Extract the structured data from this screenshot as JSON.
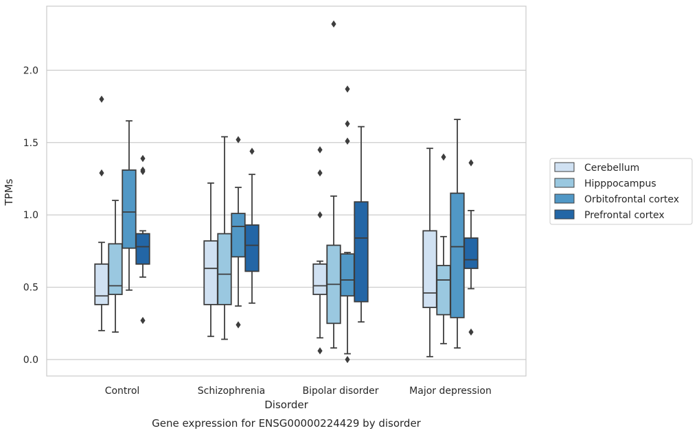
{
  "chart_data": {
    "type": "box",
    "xlabel": "Disorder",
    "ylabel": "TPMs",
    "caption": "Gene expression for ENSG00000224429 by disorder",
    "categories": [
      "Control",
      "Schizophrenia",
      "Bipolar disorder",
      "Major depression"
    ],
    "yticks": [
      "0.0",
      "0.5",
      "1.0",
      "1.5",
      "2.0"
    ],
    "ylim": [
      -0.11,
      2.45
    ],
    "grid": true,
    "legend_position": "right",
    "series": [
      {
        "name": "Cerebellum",
        "color": "#d0e1f2",
        "boxes": [
          {
            "whislo": 0.2,
            "q1": 0.38,
            "med": 0.44,
            "q3": 0.66,
            "whishi": 0.81,
            "fliers": [
              1.29,
              1.8
            ]
          },
          {
            "whislo": 0.16,
            "q1": 0.38,
            "med": 0.63,
            "q3": 0.82,
            "whishi": 1.22,
            "fliers": []
          },
          {
            "whislo": 0.15,
            "q1": 0.45,
            "med": 0.51,
            "q3": 0.66,
            "whishi": 0.68,
            "fliers": [
              0.06,
              1.0,
              1.29,
              1.45
            ]
          },
          {
            "whislo": 0.02,
            "q1": 0.36,
            "med": 0.46,
            "q3": 0.89,
            "whishi": 1.46,
            "fliers": []
          }
        ]
      },
      {
        "name": "Hipppocampus",
        "color": "#9ac8e0",
        "boxes": [
          {
            "whislo": 0.19,
            "q1": 0.45,
            "med": 0.51,
            "q3": 0.8,
            "whishi": 1.1,
            "fliers": []
          },
          {
            "whislo": 0.14,
            "q1": 0.38,
            "med": 0.59,
            "q3": 0.87,
            "whishi": 1.54,
            "fliers": []
          },
          {
            "whislo": 0.08,
            "q1": 0.25,
            "med": 0.52,
            "q3": 0.79,
            "whishi": 1.13,
            "fliers": [
              2.32
            ]
          },
          {
            "whislo": 0.11,
            "q1": 0.31,
            "med": 0.55,
            "q3": 0.65,
            "whishi": 0.85,
            "fliers": [
              1.4
            ]
          }
        ]
      },
      {
        "name": "Orbitofrontal cortex",
        "color": "#5198c6",
        "boxes": [
          {
            "whislo": 0.48,
            "q1": 0.77,
            "med": 1.02,
            "q3": 1.31,
            "whishi": 1.65,
            "fliers": []
          },
          {
            "whislo": 0.37,
            "q1": 0.71,
            "med": 0.92,
            "q3": 1.01,
            "whishi": 1.19,
            "fliers": [
              0.24,
              1.52
            ]
          },
          {
            "whislo": 0.04,
            "q1": 0.44,
            "med": 0.55,
            "q3": 0.73,
            "whishi": 0.74,
            "fliers": [
              0.0,
              1.51,
              1.63,
              1.87
            ]
          },
          {
            "whislo": 0.08,
            "q1": 0.29,
            "med": 0.78,
            "q3": 1.15,
            "whishi": 1.66,
            "fliers": []
          }
        ]
      },
      {
        "name": "Prefrontal cortex",
        "color": "#2366a6",
        "boxes": [
          {
            "whislo": 0.57,
            "q1": 0.66,
            "med": 0.78,
            "q3": 0.87,
            "whishi": 0.89,
            "fliers": [
              0.27,
              1.3,
              1.31,
              1.39
            ]
          },
          {
            "whislo": 0.39,
            "q1": 0.61,
            "med": 0.79,
            "q3": 0.93,
            "whishi": 1.28,
            "fliers": [
              1.44
            ]
          },
          {
            "whislo": 0.26,
            "q1": 0.4,
            "med": 0.84,
            "q3": 1.09,
            "whishi": 1.61,
            "fliers": []
          },
          {
            "whislo": 0.49,
            "q1": 0.63,
            "med": 0.69,
            "q3": 0.84,
            "whishi": 1.03,
            "fliers": [
              0.19,
              1.36
            ]
          }
        ]
      }
    ]
  }
}
